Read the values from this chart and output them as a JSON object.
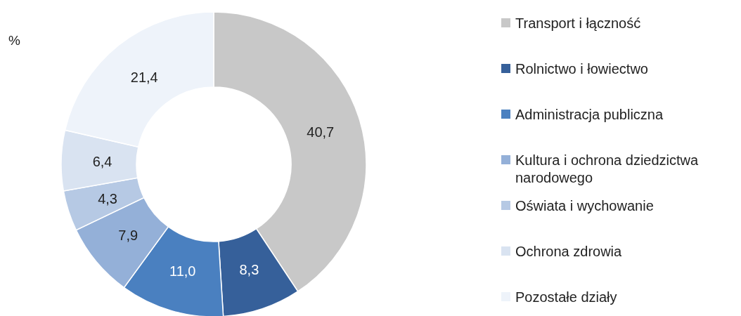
{
  "chart_data": {
    "type": "donut",
    "categories": [
      "Transport i łączność",
      "Rolnictwo i łowiectwo",
      "Administracja publiczna",
      "Kultura i ochrona dziedzictwa narodowego",
      "Oświata i wychowanie",
      "Ochrona zdrowia",
      "Pozostałe działy"
    ],
    "values": [
      40.7,
      8.3,
      11.0,
      7.9,
      4.3,
      6.4,
      21.4
    ],
    "value_labels": [
      "40,7",
      "8,3",
      "11,0",
      "7,9",
      "4,3",
      "6,4",
      "21,4"
    ],
    "colors": [
      "#c8c8c8",
      "#36609a",
      "#4a80c0",
      "#94b0d8",
      "#b6c9e4",
      "#d9e3f1",
      "#eef3fa"
    ],
    "annotations": [
      "%"
    ],
    "legend": "right"
  }
}
